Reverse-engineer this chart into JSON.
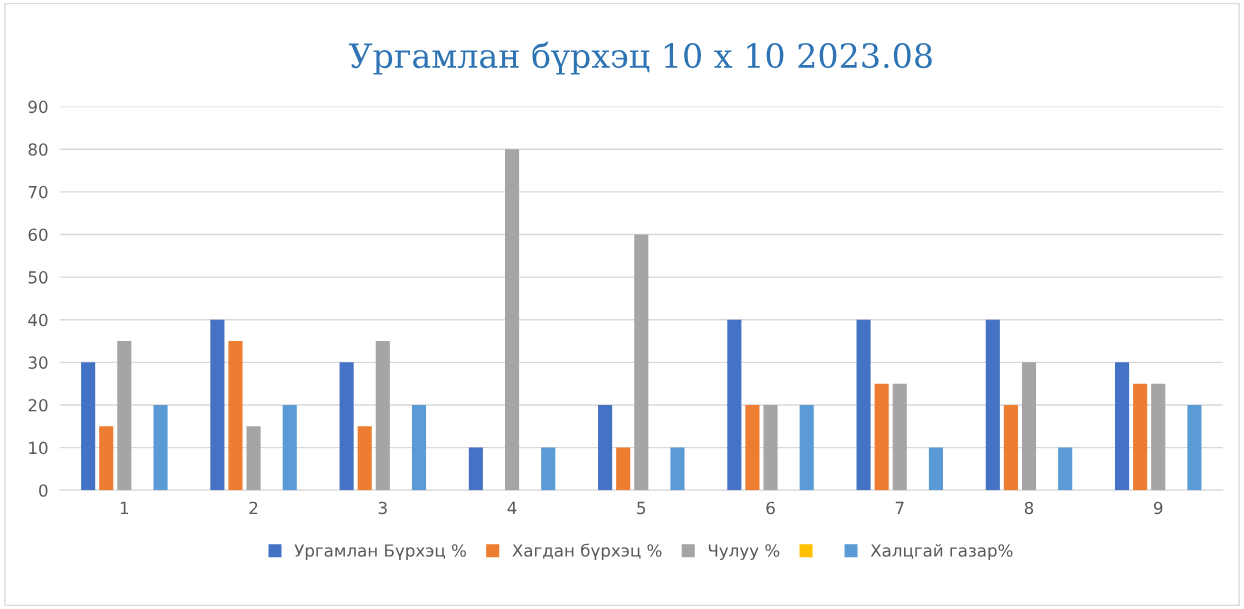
{
  "chart_data": {
    "type": "bar",
    "title": "Ургамлан бүрхэц 10 x 10 2023.08",
    "categories": [
      "1",
      "2",
      "3",
      "4",
      "5",
      "6",
      "7",
      "8",
      "9"
    ],
    "series": [
      {
        "name": "Ургамлан Бүрхэц %",
        "color": "#4472c4",
        "values": [
          30,
          40,
          30,
          10,
          20,
          40,
          40,
          40,
          30
        ]
      },
      {
        "name": "Хагдан бүрхэц %",
        "color": "#ed7d31",
        "values": [
          15,
          35,
          15,
          0,
          10,
          20,
          25,
          20,
          25
        ]
      },
      {
        "name": "Чулуу %",
        "color": "#a5a5a5",
        "values": [
          35,
          15,
          35,
          80,
          60,
          20,
          25,
          30,
          25
        ]
      },
      {
        "color": "#ffc000",
        "values": [
          0,
          0,
          0,
          0,
          0,
          0,
          0,
          0,
          0
        ]
      },
      {
        "name": "Халцгай газар%",
        "color": "#5b9bd5",
        "values": [
          20,
          20,
          20,
          10,
          10,
          20,
          10,
          10,
          20
        ]
      }
    ],
    "ylim": [
      0,
      90
    ],
    "yticks": [
      0,
      10,
      20,
      30,
      40,
      50,
      60,
      70,
      80,
      90
    ],
    "grid": "y",
    "legend": "bottom"
  }
}
